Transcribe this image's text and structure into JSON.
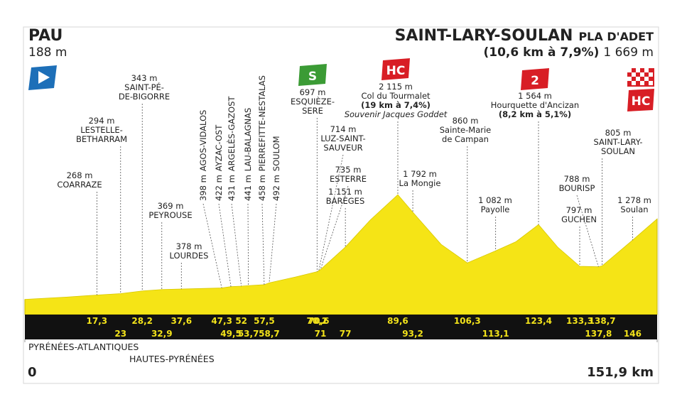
{
  "chart_data": {
    "type": "area",
    "start": {
      "name": "PAU",
      "elevation": 188,
      "elevation_label": "188 m"
    },
    "finish": {
      "name": "SAINT-LARY-SOULAN",
      "suffix": "PLA D'ADET",
      "climb": "(10,6 km à 7,9%)",
      "elevation": 1669,
      "elevation_label": "1 669 m",
      "category": "HC"
    },
    "x": [
      0,
      10,
      17.3,
      23,
      28.2,
      32.9,
      37.6,
      47.3,
      49.5,
      52,
      53.7,
      57.5,
      58.7,
      65,
      70.2,
      70.6,
      71,
      77,
      83,
      89.6,
      93.2,
      100,
      106.3,
      113.1,
      118,
      123.4,
      128,
      133.3,
      137.8,
      138.7,
      146,
      151.9
    ],
    "values": [
      188,
      230,
      268,
      294,
      343,
      369,
      378,
      398,
      422,
      431,
      441,
      458,
      492,
      600,
      697,
      714,
      735,
      1151,
      1650,
      2115,
      1792,
      1200,
      860,
      1082,
      1250,
      1564,
      1150,
      797,
      788,
      805,
      1278,
      1669
    ],
    "color": "#f5e416",
    "xlim": [
      0,
      151.9
    ],
    "xticks": [
      {
        "value": 0,
        "label": "0"
      },
      {
        "value": 151.9,
        "label": "151,9 km"
      }
    ],
    "ylim": [
      0,
      2300
    ],
    "waypoints": [
      {
        "name": [
          "COARRAZE"
        ],
        "elevation": 268,
        "elevation_label": "268 m",
        "km": 17.3,
        "km_label": "17,3"
      },
      {
        "name": [
          "LESTELLE-",
          "BETHARRAM"
        ],
        "elevation": 294,
        "elevation_label": "294 m",
        "km": 23,
        "km_label": "23"
      },
      {
        "name": [
          "SAINT-PÉ-",
          "DE-BIGORRE"
        ],
        "elevation": 343,
        "elevation_label": "343 m",
        "km": 28.2,
        "km_label": "28,2"
      },
      {
        "name": [
          "PEYROUSE"
        ],
        "elevation": 369,
        "elevation_label": "369 m",
        "km": 32.9,
        "km_label": "32,9"
      },
      {
        "name": [
          "LOURDES"
        ],
        "elevation": 378,
        "elevation_label": "378 m",
        "km": 37.6,
        "km_label": "37,6"
      },
      {
        "name": [
          "AGOS-VIDALOS"
        ],
        "elevation": 398,
        "elevation_label": "398 m",
        "km": 47.3,
        "km_label": "47,3"
      },
      {
        "name": [
          "AYZAC-OST"
        ],
        "elevation": 422,
        "elevation_label": "422 m",
        "km": 49.5,
        "km_label": "49,5"
      },
      {
        "name": [
          "ARGELÈS-GAZOST"
        ],
        "elevation": 431,
        "elevation_label": "431 m",
        "km": 52,
        "km_label": "52"
      },
      {
        "name": [
          "LAU-BALAGNAS"
        ],
        "elevation": 441,
        "elevation_label": "441 m",
        "km": 53.7,
        "km_label": "53,7"
      },
      {
        "name": [
          "PIERREFITTE-NESTALAS"
        ],
        "elevation": 458,
        "elevation_label": "458 m",
        "km": 57.5,
        "km_label": "57,5"
      },
      {
        "name": [
          "SOULOM"
        ],
        "elevation": 492,
        "elevation_label": "492 m",
        "km": 58.7,
        "km_label": "58,7"
      },
      {
        "name": [
          "ESQUIÈZE-",
          "SERE"
        ],
        "elevation": 697,
        "elevation_label": "697 m",
        "km": 70.2,
        "km_label": "70,2",
        "category": "S"
      },
      {
        "name": [
          "LUZ-SAINT-",
          "SAUVEUR"
        ],
        "elevation": 714,
        "elevation_label": "714 m",
        "km": 70.6,
        "km_label": "70,6"
      },
      {
        "name": [
          "ESTERRE"
        ],
        "elevation": 735,
        "elevation_label": "735 m",
        "km": 71,
        "km_label": "71"
      },
      {
        "name": [
          "BARÈGES"
        ],
        "elevation": 1151,
        "elevation_label": "1 151 m",
        "km": 77,
        "km_label": "77"
      },
      {
        "name": [
          "Col du Tourmalet"
        ],
        "elevation": 2115,
        "elevation_label": "2 115 m",
        "km": 89.6,
        "km_label": "89,6",
        "category": "HC",
        "detail": "(19 km à 7,4%)",
        "note": "Souvenir Jacques Goddet"
      },
      {
        "name": [
          "La Mongie"
        ],
        "elevation": 1792,
        "elevation_label": "1 792 m",
        "km": 93.2,
        "km_label": "93,2"
      },
      {
        "name": [
          "Sainte-Marie",
          "de Campan"
        ],
        "elevation": 860,
        "elevation_label": "860 m",
        "km": 106.3,
        "km_label": "106,3"
      },
      {
        "name": [
          "Payolle"
        ],
        "elevation": 1082,
        "elevation_label": "1 082 m",
        "km": 113.1,
        "km_label": "113,1"
      },
      {
        "name": [
          "Hourquette d'Ancizan"
        ],
        "elevation": 1564,
        "elevation_label": "1 564 m",
        "km": 123.4,
        "km_label": "123,4",
        "category": "2",
        "detail": "(8,2 km à 5,1%)"
      },
      {
        "name": [
          "GUCHEN"
        ],
        "elevation": 797,
        "elevation_label": "797 m",
        "km": 133.3,
        "km_label": "133,3"
      },
      {
        "name": [
          "BOURISP"
        ],
        "elevation": 788,
        "elevation_label": "788 m",
        "km": 137.8,
        "km_label": "137,8"
      },
      {
        "name": [
          "SAINT-LARY-",
          "SOULAN"
        ],
        "elevation": 805,
        "elevation_label": "805 m",
        "km": 138.7,
        "km_label": "138,7"
      },
      {
        "name": [
          "Soulan"
        ],
        "elevation": 1278,
        "elevation_label": "1 278 m",
        "km": 146,
        "km_label": "146"
      }
    ],
    "regions": [
      "PYRÉNÉES-ATLANTIQUES",
      "HAUTES-PYRÉNÉES"
    ]
  }
}
